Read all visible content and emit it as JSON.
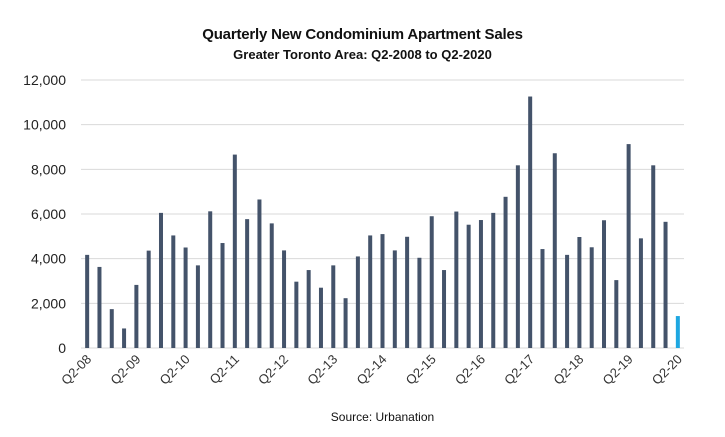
{
  "chart_data": {
    "type": "bar",
    "title": "Quarterly New Condominium Apartment Sales",
    "subtitle": "Greater Toronto Area: Q2-2008 to Q2-2020",
    "source": "Source: Urbanation",
    "xlabel": "",
    "ylabel": "",
    "ylim": [
      0,
      12000
    ],
    "yticks": [
      0,
      2000,
      4000,
      6000,
      8000,
      10000,
      12000
    ],
    "ytick_labels": [
      "0",
      "2,000",
      "4,000",
      "6,000",
      "8,000",
      "10,000",
      "12,000"
    ],
    "grid": true,
    "legend": "none",
    "x_tick_labels": [
      "Q2-08",
      "Q2-09",
      "Q2-10",
      "Q2-11",
      "Q2-12",
      "Q2-13",
      "Q2-14",
      "Q2-15",
      "Q2-16",
      "Q2-17",
      "Q2-18",
      "Q2-19",
      "Q2-20"
    ],
    "x_tick_every": 4,
    "categories": [
      "Q2-08",
      "Q3-08",
      "Q4-08",
      "Q1-09",
      "Q2-09",
      "Q3-09",
      "Q4-09",
      "Q1-10",
      "Q2-10",
      "Q3-10",
      "Q4-10",
      "Q1-11",
      "Q2-11",
      "Q3-11",
      "Q4-11",
      "Q1-12",
      "Q2-12",
      "Q3-12",
      "Q4-12",
      "Q1-13",
      "Q2-13",
      "Q3-13",
      "Q4-13",
      "Q1-14",
      "Q2-14",
      "Q3-14",
      "Q4-14",
      "Q1-15",
      "Q2-15",
      "Q3-15",
      "Q4-15",
      "Q1-16",
      "Q2-16",
      "Q3-16",
      "Q4-16",
      "Q1-17",
      "Q2-17",
      "Q3-17",
      "Q4-17",
      "Q1-18",
      "Q2-18",
      "Q3-18",
      "Q4-18",
      "Q1-19",
      "Q2-19",
      "Q3-19",
      "Q4-19",
      "Q1-20",
      "Q2-20"
    ],
    "values": [
      4170,
      3630,
      1740,
      875,
      2825,
      4360,
      6050,
      5040,
      4500,
      3700,
      6120,
      4700,
      8660,
      5770,
      6650,
      5580,
      4370,
      2970,
      3490,
      2700,
      3700,
      2230,
      4100,
      5040,
      5100,
      4370,
      4980,
      4040,
      5900,
      3490,
      6110,
      5520,
      5730,
      6050,
      6770,
      8180,
      11260,
      4430,
      8720,
      4170,
      4970,
      4510,
      5720,
      3040,
      9130,
      4910,
      8180,
      5650,
      1430
    ],
    "colors": {
      "default": "#44536a",
      "highlight": "#1ea7e1",
      "grid": "#d9d9d9"
    },
    "highlight_index": 48
  }
}
